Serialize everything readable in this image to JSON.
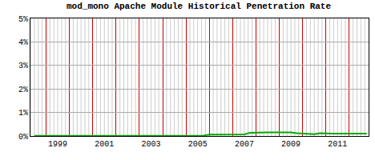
{
  "chart_data": {
    "type": "line",
    "title": "mod_mono Apache Module Historical Penetration Rate",
    "x": [
      1998.5,
      1998.75,
      1999.0,
      1999.25,
      1999.5,
      1999.75,
      2000.0,
      2000.25,
      2000.5,
      2000.75,
      2001.0,
      2001.25,
      2001.5,
      2001.75,
      2002.0,
      2002.25,
      2002.5,
      2002.75,
      2003.0,
      2003.25,
      2003.5,
      2003.75,
      2004.0,
      2004.25,
      2004.5,
      2004.75,
      2005.0,
      2005.25,
      2005.5,
      2005.75,
      2006.0,
      2006.25,
      2006.5,
      2006.75,
      2007.0,
      2007.25,
      2007.5,
      2007.75,
      2008.0,
      2008.25,
      2008.5,
      2008.75,
      2009.0,
      2009.25,
      2009.5,
      2009.75,
      2010.0,
      2010.25,
      2010.5,
      2010.75,
      2011.0,
      2011.25,
      2011.5,
      2011.75,
      2012.0,
      2012.25,
      2012.5,
      2012.75
    ],
    "values": [
      0.01,
      0.01,
      0.01,
      0.01,
      0.01,
      0.01,
      0.01,
      0.01,
      0.01,
      0.01,
      0.01,
      0.01,
      0.01,
      0.01,
      0.01,
      0.01,
      0.01,
      0.01,
      0.01,
      0.01,
      0.01,
      0.01,
      0.01,
      0.01,
      0.01,
      0.01,
      0.01,
      0.01,
      0.01,
      0.02,
      0.06,
      0.06,
      0.06,
      0.06,
      0.06,
      0.07,
      0.07,
      0.14,
      0.15,
      0.15,
      0.15,
      0.15,
      0.15,
      0.15,
      0.15,
      0.12,
      0.1,
      0.1,
      0.08,
      0.12,
      0.1,
      0.1,
      0.1,
      0.1,
      0.1,
      0.1,
      0.1,
      0.1
    ],
    "color": "#00aa00",
    "xlim": [
      1998.33,
      2012.83
    ],
    "xticks": [
      {
        "value": 1999.5,
        "label": "1999"
      },
      {
        "value": 2001.5,
        "label": "2001"
      },
      {
        "value": 2003.5,
        "label": "2003"
      },
      {
        "value": 2005.5,
        "label": "2005"
      },
      {
        "value": 2007.5,
        "label": "2007"
      },
      {
        "value": 2009.5,
        "label": "2009"
      },
      {
        "value": 2011.5,
        "label": "2011"
      }
    ],
    "ylim": [
      0,
      5
    ],
    "yticks": [
      {
        "value": 0,
        "label": "0%"
      },
      {
        "value": 1,
        "label": "1%"
      },
      {
        "value": 2,
        "label": "2%"
      },
      {
        "value": 3,
        "label": "3%"
      },
      {
        "value": 4,
        "label": "4%"
      },
      {
        "value": 5,
        "label": "5%"
      }
    ],
    "grid": true
  }
}
